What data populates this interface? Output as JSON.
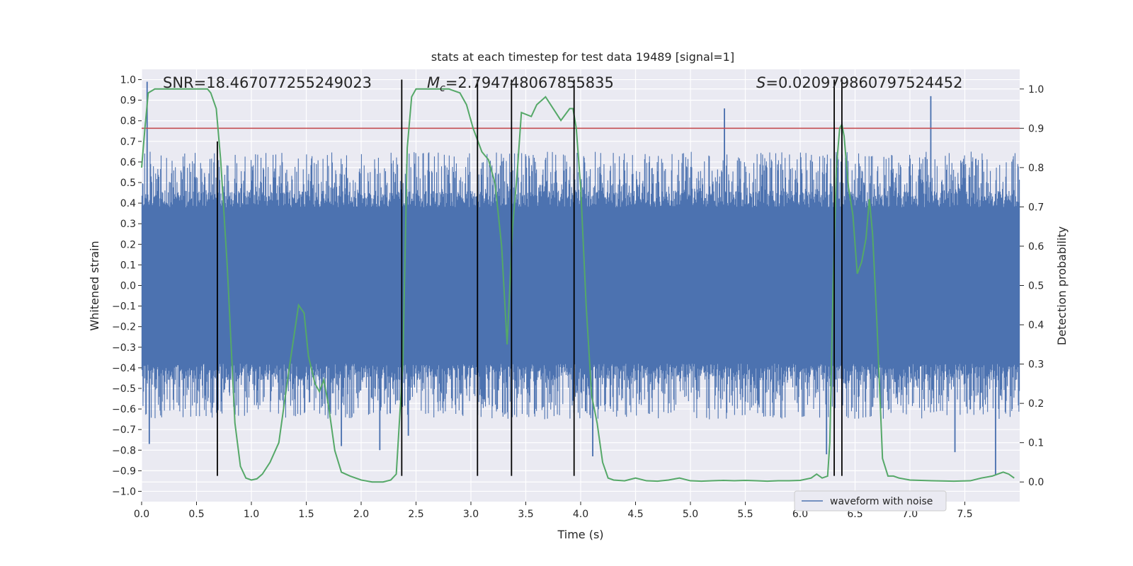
{
  "chart_data": {
    "type": "line",
    "title": "stats at each timestep for test data 19489 [signal=1]",
    "xlabel": "Time (s)",
    "ylabel": "Whitened strain",
    "y2label": "Detection probability",
    "xlim": [
      0,
      8
    ],
    "ylim": [
      -1.05,
      1.05
    ],
    "y2lim": [
      -0.05,
      1.05
    ],
    "x_ticks": [
      0.0,
      0.5,
      1.0,
      1.5,
      2.0,
      2.5,
      3.0,
      3.5,
      4.0,
      4.5,
      5.0,
      5.5,
      6.0,
      6.5,
      7.0,
      7.5
    ],
    "x_tick_labels": [
      "0.0",
      "0.5",
      "1.0",
      "1.5",
      "2.0",
      "2.5",
      "3.0",
      "3.5",
      "4.0",
      "4.5",
      "5.0",
      "5.5",
      "6.0",
      "6.5",
      "7.0",
      "7.5"
    ],
    "y_ticks": [
      1.0,
      0.9,
      0.8,
      0.7,
      0.6,
      0.5,
      0.4,
      0.3,
      0.2,
      0.1,
      0.0,
      -0.1,
      -0.2,
      -0.3,
      -0.4,
      -0.5,
      -0.6,
      -0.7,
      -0.8,
      -0.9,
      -1.0
    ],
    "y_tick_labels": [
      "1.0",
      "0.9",
      "0.8",
      "0.7",
      "0.6",
      "0.5",
      "0.4",
      "0.3",
      "0.2",
      "0.1",
      "0.0",
      "−0.1",
      "−0.2",
      "−0.3",
      "−0.4",
      "−0.5",
      "−0.6",
      "−0.7",
      "−0.8",
      "−0.9",
      "−1.0"
    ],
    "y2_ticks": [
      1.0,
      0.9,
      0.8,
      0.7,
      0.6,
      0.5,
      0.4,
      0.3,
      0.2,
      0.1,
      0.0
    ],
    "y2_tick_labels": [
      "1.0",
      "0.9",
      "0.8",
      "0.7",
      "0.6",
      "0.5",
      "0.4",
      "0.3",
      "0.2",
      "0.1",
      "0.0"
    ],
    "annotations": {
      "snr": "SNR=18.467077255249023",
      "mc_symbol": "M",
      "mc_sub": "c",
      "mc_value": "=2.794748067855835",
      "s_symbol": "S",
      "s_value": "=0.020979860797524452"
    },
    "threshold": {
      "y2": 0.9,
      "color": "#c44e52"
    },
    "vertical_lines": [
      {
        "x": 0.69,
        "y_bottom": -0.925,
        "y_top": 0.7
      },
      {
        "x": 2.37,
        "y_bottom": -0.925,
        "y_top": 1.0
      },
      {
        "x": 3.06,
        "y_bottom": -0.925,
        "y_top": 1.0
      },
      {
        "x": 3.37,
        "y_bottom": -0.925,
        "y_top": 1.0
      },
      {
        "x": 3.94,
        "y_bottom": -0.925,
        "y_top": 1.0
      },
      {
        "x": 6.31,
        "y_bottom": -0.925,
        "y_top": 1.0
      },
      {
        "x": 6.38,
        "y_bottom": -0.925,
        "y_top": 1.0
      }
    ],
    "series": [
      {
        "name": "waveform with noise",
        "axis": "left",
        "color": "#4c72b0",
        "kind": "noise",
        "n_samples": 1600,
        "core_amplitude": 0.38,
        "typical_peak_range": [
          0.45,
          0.65
        ],
        "spikes": [
          {
            "x": 0.05,
            "y": 0.99
          },
          {
            "x": 0.07,
            "y": -0.77
          },
          {
            "x": 1.82,
            "y": -0.78
          },
          {
            "x": 2.17,
            "y": -0.8
          },
          {
            "x": 2.43,
            "y": -0.73
          },
          {
            "x": 4.11,
            "y": -0.83
          },
          {
            "x": 5.31,
            "y": 0.86
          },
          {
            "x": 6.24,
            "y": -0.82
          },
          {
            "x": 7.19,
            "y": 0.92
          },
          {
            "x": 7.41,
            "y": -0.81
          },
          {
            "x": 7.78,
            "y": -0.92
          }
        ]
      },
      {
        "name": "detection probability",
        "axis": "right",
        "color": "#55a868",
        "x": [
          0.0,
          0.03,
          0.06,
          0.12,
          0.2,
          0.3,
          0.4,
          0.5,
          0.6,
          0.63,
          0.68,
          0.72,
          0.78,
          0.85,
          0.9,
          0.95,
          1.0,
          1.05,
          1.1,
          1.17,
          1.25,
          1.35,
          1.43,
          1.48,
          1.52,
          1.58,
          1.62,
          1.66,
          1.7,
          1.76,
          1.82,
          1.9,
          2.0,
          2.1,
          2.2,
          2.27,
          2.32,
          2.38,
          2.42,
          2.46,
          2.5,
          2.6,
          2.7,
          2.8,
          2.9,
          2.96,
          3.02,
          3.1,
          3.16,
          3.22,
          3.28,
          3.33,
          3.38,
          3.42,
          3.46,
          3.55,
          3.6,
          3.68,
          3.75,
          3.82,
          3.9,
          3.93,
          3.96,
          4.0,
          4.05,
          4.1,
          4.15,
          4.2,
          4.25,
          4.3,
          4.4,
          4.5,
          4.6,
          4.7,
          4.8,
          4.9,
          5.0,
          5.1,
          5.2,
          5.3,
          5.4,
          5.5,
          5.6,
          5.7,
          5.8,
          5.9,
          6.0,
          6.1,
          6.15,
          6.2,
          6.25,
          6.27,
          6.3,
          6.33,
          6.36,
          6.38,
          6.4,
          6.44,
          6.48,
          6.52,
          6.56,
          6.6,
          6.63,
          6.66,
          6.7,
          6.75,
          6.8,
          6.85,
          6.9,
          7.0,
          7.2,
          7.4,
          7.55,
          7.65,
          7.75,
          7.8,
          7.85,
          7.9,
          7.95
        ],
        "y": [
          0.8,
          0.9,
          0.99,
          1.0,
          1.0,
          1.0,
          1.0,
          1.0,
          1.0,
          0.99,
          0.95,
          0.82,
          0.55,
          0.15,
          0.04,
          0.01,
          0.005,
          0.008,
          0.02,
          0.05,
          0.1,
          0.3,
          0.45,
          0.43,
          0.32,
          0.25,
          0.23,
          0.26,
          0.2,
          0.08,
          0.025,
          0.015,
          0.005,
          0.0,
          0.0,
          0.005,
          0.02,
          0.3,
          0.85,
          0.98,
          1.0,
          1.0,
          1.0,
          1.0,
          0.99,
          0.96,
          0.9,
          0.84,
          0.82,
          0.76,
          0.6,
          0.35,
          0.65,
          0.78,
          0.94,
          0.93,
          0.96,
          0.98,
          0.95,
          0.92,
          0.95,
          0.95,
          0.9,
          0.75,
          0.45,
          0.22,
          0.15,
          0.05,
          0.01,
          0.005,
          0.003,
          0.01,
          0.003,
          0.002,
          0.005,
          0.01,
          0.003,
          0.002,
          0.003,
          0.004,
          0.003,
          0.004,
          0.003,
          0.002,
          0.003,
          0.003,
          0.004,
          0.01,
          0.02,
          0.01,
          0.015,
          0.1,
          0.5,
          0.8,
          0.9,
          0.91,
          0.88,
          0.75,
          0.68,
          0.53,
          0.56,
          0.62,
          0.72,
          0.63,
          0.4,
          0.06,
          0.015,
          0.015,
          0.01,
          0.005,
          0.003,
          0.002,
          0.003,
          0.01,
          0.015,
          0.02,
          0.025,
          0.02,
          0.01
        ]
      }
    ],
    "legend": {
      "position": "lower-right",
      "entries": [
        "waveform with noise"
      ]
    }
  }
}
